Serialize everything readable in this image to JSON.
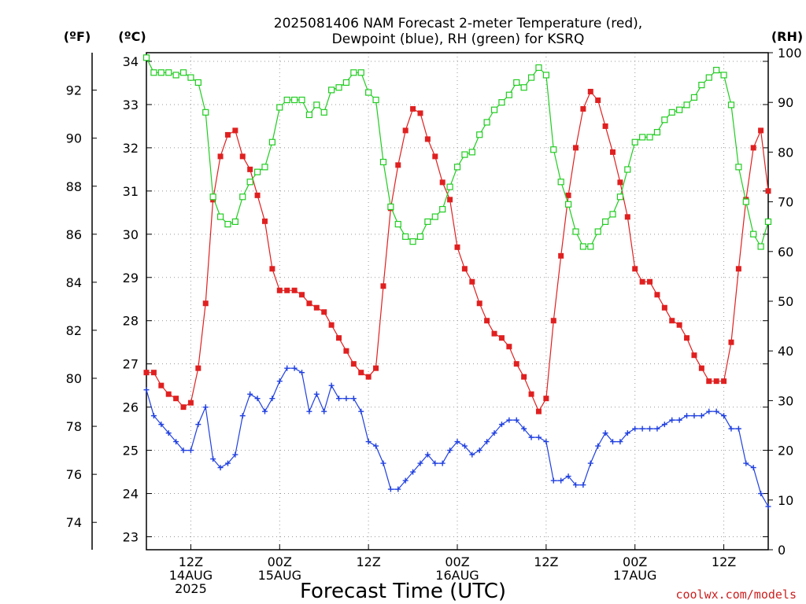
{
  "title_line1": "2025081406 NAM Forecast 2-meter Temperature (red),",
  "title_line2": "Dewpoint (blue), RH (green) for KSRQ",
  "unit_f": "(ºF)",
  "unit_c": "(ºC)",
  "unit_rh": "(RH)",
  "credit": "coolwx.com/models",
  "chart_data": {
    "type": "line",
    "title": "2025081406 NAM Forecast 2-meter Temperature (red), Dewpoint (blue), RH (green) for KSRQ",
    "xlabel": "Forecast Time (UTC)",
    "ylabel_left_f": "(ºF)",
    "ylabel_left_c": "(ºC)",
    "ylabel_right": "(RH)",
    "x_unit": "hours from 2025-08-14 06Z",
    "x_range": [
      0,
      84
    ],
    "y_c_range": [
      22.7,
      34.2
    ],
    "y_rh_range": [
      0,
      100
    ],
    "grid": true,
    "x_ticks": [
      {
        "hour": 6,
        "lines": [
          "12Z",
          "14AUG",
          "2025"
        ]
      },
      {
        "hour": 18,
        "lines": [
          "00Z",
          "15AUG"
        ]
      },
      {
        "hour": 30,
        "lines": [
          "12Z"
        ]
      },
      {
        "hour": 42,
        "lines": [
          "00Z",
          "16AUG"
        ]
      },
      {
        "hour": 54,
        "lines": [
          "12Z"
        ]
      },
      {
        "hour": 66,
        "lines": [
          "00Z",
          "17AUG"
        ]
      },
      {
        "hour": 78,
        "lines": [
          "12Z"
        ]
      }
    ],
    "y_ticks_c": [
      "23",
      "24",
      "25",
      "26",
      "27",
      "28",
      "29",
      "30",
      "31",
      "32",
      "33",
      "34"
    ],
    "y_ticks_f": [
      "74",
      "76",
      "78",
      "80",
      "82",
      "84",
      "86",
      "88",
      "90",
      "92"
    ],
    "y_ticks_rh": [
      "0",
      "10",
      "20",
      "30",
      "40",
      "50",
      "60",
      "70",
      "80",
      "90",
      "100"
    ],
    "series": [
      {
        "name": "Temperature",
        "axis": "c",
        "color": "#e02020",
        "marker": "filled-square",
        "points": [
          [
            0,
            26.8
          ],
          [
            1,
            26.8
          ],
          [
            2,
            26.5
          ],
          [
            3,
            26.3
          ],
          [
            4,
            26.2
          ],
          [
            5,
            26.0
          ],
          [
            6,
            26.1
          ],
          [
            7,
            26.9
          ],
          [
            8,
            28.4
          ],
          [
            9,
            30.8
          ],
          [
            10,
            31.8
          ],
          [
            11,
            32.3
          ],
          [
            12,
            32.4
          ],
          [
            13,
            31.8
          ],
          [
            14,
            31.5
          ],
          [
            15,
            30.9
          ],
          [
            16,
            30.3
          ],
          [
            17,
            29.2
          ],
          [
            18,
            28.7
          ],
          [
            19,
            28.7
          ],
          [
            20,
            28.7
          ],
          [
            21,
            28.6
          ],
          [
            22,
            28.4
          ],
          [
            23,
            28.3
          ],
          [
            24,
            28.2
          ],
          [
            25,
            27.9
          ],
          [
            26,
            27.6
          ],
          [
            27,
            27.3
          ],
          [
            28,
            27.0
          ],
          [
            29,
            26.8
          ],
          [
            30,
            26.7
          ],
          [
            31,
            26.9
          ],
          [
            32,
            28.8
          ],
          [
            33,
            30.6
          ],
          [
            34,
            31.6
          ],
          [
            35,
            32.4
          ],
          [
            36,
            32.9
          ],
          [
            37,
            32.8
          ],
          [
            38,
            32.2
          ],
          [
            39,
            31.8
          ],
          [
            40,
            31.2
          ],
          [
            41,
            30.8
          ],
          [
            42,
            29.7
          ],
          [
            43,
            29.2
          ],
          [
            44,
            28.9
          ],
          [
            45,
            28.4
          ],
          [
            46,
            28.0
          ],
          [
            47,
            27.7
          ],
          [
            48,
            27.6
          ],
          [
            49,
            27.4
          ],
          [
            50,
            27.0
          ],
          [
            51,
            26.7
          ],
          [
            52,
            26.3
          ],
          [
            53,
            25.9
          ],
          [
            54,
            26.2
          ],
          [
            55,
            28.0
          ],
          [
            56,
            29.5
          ],
          [
            57,
            30.9
          ],
          [
            58,
            32.0
          ],
          [
            59,
            32.9
          ],
          [
            60,
            33.3
          ],
          [
            61,
            33.1
          ],
          [
            62,
            32.5
          ],
          [
            63,
            31.9
          ],
          [
            64,
            31.2
          ],
          [
            65,
            30.4
          ],
          [
            66,
            29.2
          ],
          [
            67,
            28.9
          ],
          [
            68,
            28.9
          ],
          [
            69,
            28.6
          ],
          [
            70,
            28.3
          ],
          [
            71,
            28.0
          ],
          [
            72,
            27.9
          ],
          [
            73,
            27.6
          ],
          [
            74,
            27.2
          ],
          [
            75,
            26.9
          ],
          [
            76,
            26.6
          ],
          [
            77,
            26.6
          ],
          [
            78,
            26.6
          ],
          [
            79,
            27.5
          ],
          [
            80,
            29.2
          ],
          [
            81,
            30.8
          ],
          [
            82,
            32.0
          ],
          [
            83,
            32.4
          ],
          [
            84,
            31.0
          ]
        ]
      },
      {
        "name": "Dewpoint",
        "axis": "c",
        "color": "#2040e0",
        "marker": "plus",
        "points": [
          [
            0,
            26.4
          ],
          [
            1,
            25.8
          ],
          [
            2,
            25.6
          ],
          [
            3,
            25.4
          ],
          [
            4,
            25.2
          ],
          [
            5,
            25.0
          ],
          [
            6,
            25.0
          ],
          [
            7,
            25.6
          ],
          [
            8,
            26.0
          ],
          [
            9,
            24.8
          ],
          [
            10,
            24.6
          ],
          [
            11,
            24.7
          ],
          [
            12,
            24.9
          ],
          [
            13,
            25.8
          ],
          [
            14,
            26.3
          ],
          [
            15,
            26.2
          ],
          [
            16,
            25.9
          ],
          [
            17,
            26.2
          ],
          [
            18,
            26.6
          ],
          [
            19,
            26.9
          ],
          [
            20,
            26.9
          ],
          [
            21,
            26.8
          ],
          [
            22,
            25.9
          ],
          [
            23,
            26.3
          ],
          [
            24,
            25.9
          ],
          [
            25,
            26.5
          ],
          [
            26,
            26.2
          ],
          [
            27,
            26.2
          ],
          [
            28,
            26.2
          ],
          [
            29,
            25.9
          ],
          [
            30,
            25.2
          ],
          [
            31,
            25.1
          ],
          [
            32,
            24.7
          ],
          [
            33,
            24.1
          ],
          [
            34,
            24.1
          ],
          [
            35,
            24.3
          ],
          [
            36,
            24.5
          ],
          [
            37,
            24.7
          ],
          [
            38,
            24.9
          ],
          [
            39,
            24.7
          ],
          [
            40,
            24.7
          ],
          [
            41,
            25.0
          ],
          [
            42,
            25.2
          ],
          [
            43,
            25.1
          ],
          [
            44,
            24.9
          ],
          [
            45,
            25.0
          ],
          [
            46,
            25.2
          ],
          [
            47,
            25.4
          ],
          [
            48,
            25.6
          ],
          [
            49,
            25.7
          ],
          [
            50,
            25.7
          ],
          [
            51,
            25.5
          ],
          [
            52,
            25.3
          ],
          [
            53,
            25.3
          ],
          [
            54,
            25.2
          ],
          [
            55,
            24.3
          ],
          [
            56,
            24.3
          ],
          [
            57,
            24.4
          ],
          [
            58,
            24.2
          ],
          [
            59,
            24.2
          ],
          [
            60,
            24.7
          ],
          [
            61,
            25.1
          ],
          [
            62,
            25.4
          ],
          [
            63,
            25.2
          ],
          [
            64,
            25.2
          ],
          [
            65,
            25.4
          ],
          [
            66,
            25.5
          ],
          [
            67,
            25.5
          ],
          [
            68,
            25.5
          ],
          [
            69,
            25.5
          ],
          [
            70,
            25.6
          ],
          [
            71,
            25.7
          ],
          [
            72,
            25.7
          ],
          [
            73,
            25.8
          ],
          [
            74,
            25.8
          ],
          [
            75,
            25.8
          ],
          [
            76,
            25.9
          ],
          [
            77,
            25.9
          ],
          [
            78,
            25.8
          ],
          [
            79,
            25.5
          ],
          [
            80,
            25.5
          ],
          [
            81,
            24.7
          ],
          [
            82,
            24.6
          ],
          [
            83,
            24.0
          ],
          [
            84,
            23.7
          ]
        ]
      },
      {
        "name": "RH",
        "axis": "rh",
        "color": "#20cc20",
        "marker": "open-square",
        "points": [
          [
            0,
            99
          ],
          [
            1,
            96
          ],
          [
            2,
            96
          ],
          [
            3,
            96
          ],
          [
            4,
            95.5
          ],
          [
            5,
            96
          ],
          [
            6,
            95
          ],
          [
            7,
            94
          ],
          [
            8,
            88
          ],
          [
            9,
            71
          ],
          [
            10,
            67
          ],
          [
            11,
            65.5
          ],
          [
            12,
            66
          ],
          [
            13,
            71
          ],
          [
            14,
            74
          ],
          [
            15,
            76
          ],
          [
            16,
            77
          ],
          [
            17,
            82
          ],
          [
            18,
            89
          ],
          [
            19,
            90.5
          ],
          [
            20,
            90.5
          ],
          [
            21,
            90.5
          ],
          [
            22,
            87.5
          ],
          [
            23,
            89.5
          ],
          [
            24,
            88
          ],
          [
            25,
            92.5
          ],
          [
            26,
            93
          ],
          [
            27,
            94
          ],
          [
            28,
            96
          ],
          [
            29,
            96
          ],
          [
            30,
            92
          ],
          [
            31,
            90.5
          ],
          [
            32,
            78
          ],
          [
            33,
            69
          ],
          [
            34,
            65.5
          ],
          [
            35,
            63
          ],
          [
            36,
            62
          ],
          [
            37,
            63
          ],
          [
            38,
            66
          ],
          [
            39,
            67
          ],
          [
            40,
            68.5
          ],
          [
            41,
            73
          ],
          [
            42,
            77
          ],
          [
            43,
            79.5
          ],
          [
            44,
            80
          ],
          [
            45,
            83.5
          ],
          [
            46,
            86
          ],
          [
            47,
            88.5
          ],
          [
            48,
            90
          ],
          [
            49,
            91.5
          ],
          [
            50,
            94
          ],
          [
            51,
            93
          ],
          [
            52,
            95
          ],
          [
            53,
            97
          ],
          [
            54,
            95.5
          ],
          [
            55,
            80.5
          ],
          [
            56,
            74
          ],
          [
            57,
            69.5
          ],
          [
            58,
            64
          ],
          [
            59,
            61
          ],
          [
            60,
            61
          ],
          [
            61,
            64
          ],
          [
            62,
            66
          ],
          [
            63,
            67.5
          ],
          [
            64,
            71
          ],
          [
            65,
            76.5
          ],
          [
            66,
            82
          ],
          [
            67,
            83
          ],
          [
            68,
            83
          ],
          [
            69,
            84
          ],
          [
            70,
            86.5
          ],
          [
            71,
            88
          ],
          [
            72,
            88.5
          ],
          [
            73,
            89.5
          ],
          [
            74,
            91
          ],
          [
            75,
            93.5
          ],
          [
            76,
            95
          ],
          [
            77,
            96.5
          ],
          [
            78,
            95.5
          ],
          [
            79,
            89.5
          ],
          [
            80,
            77
          ],
          [
            81,
            70
          ],
          [
            82,
            63.5
          ],
          [
            83,
            61
          ],
          [
            84,
            66
          ]
        ]
      }
    ]
  }
}
